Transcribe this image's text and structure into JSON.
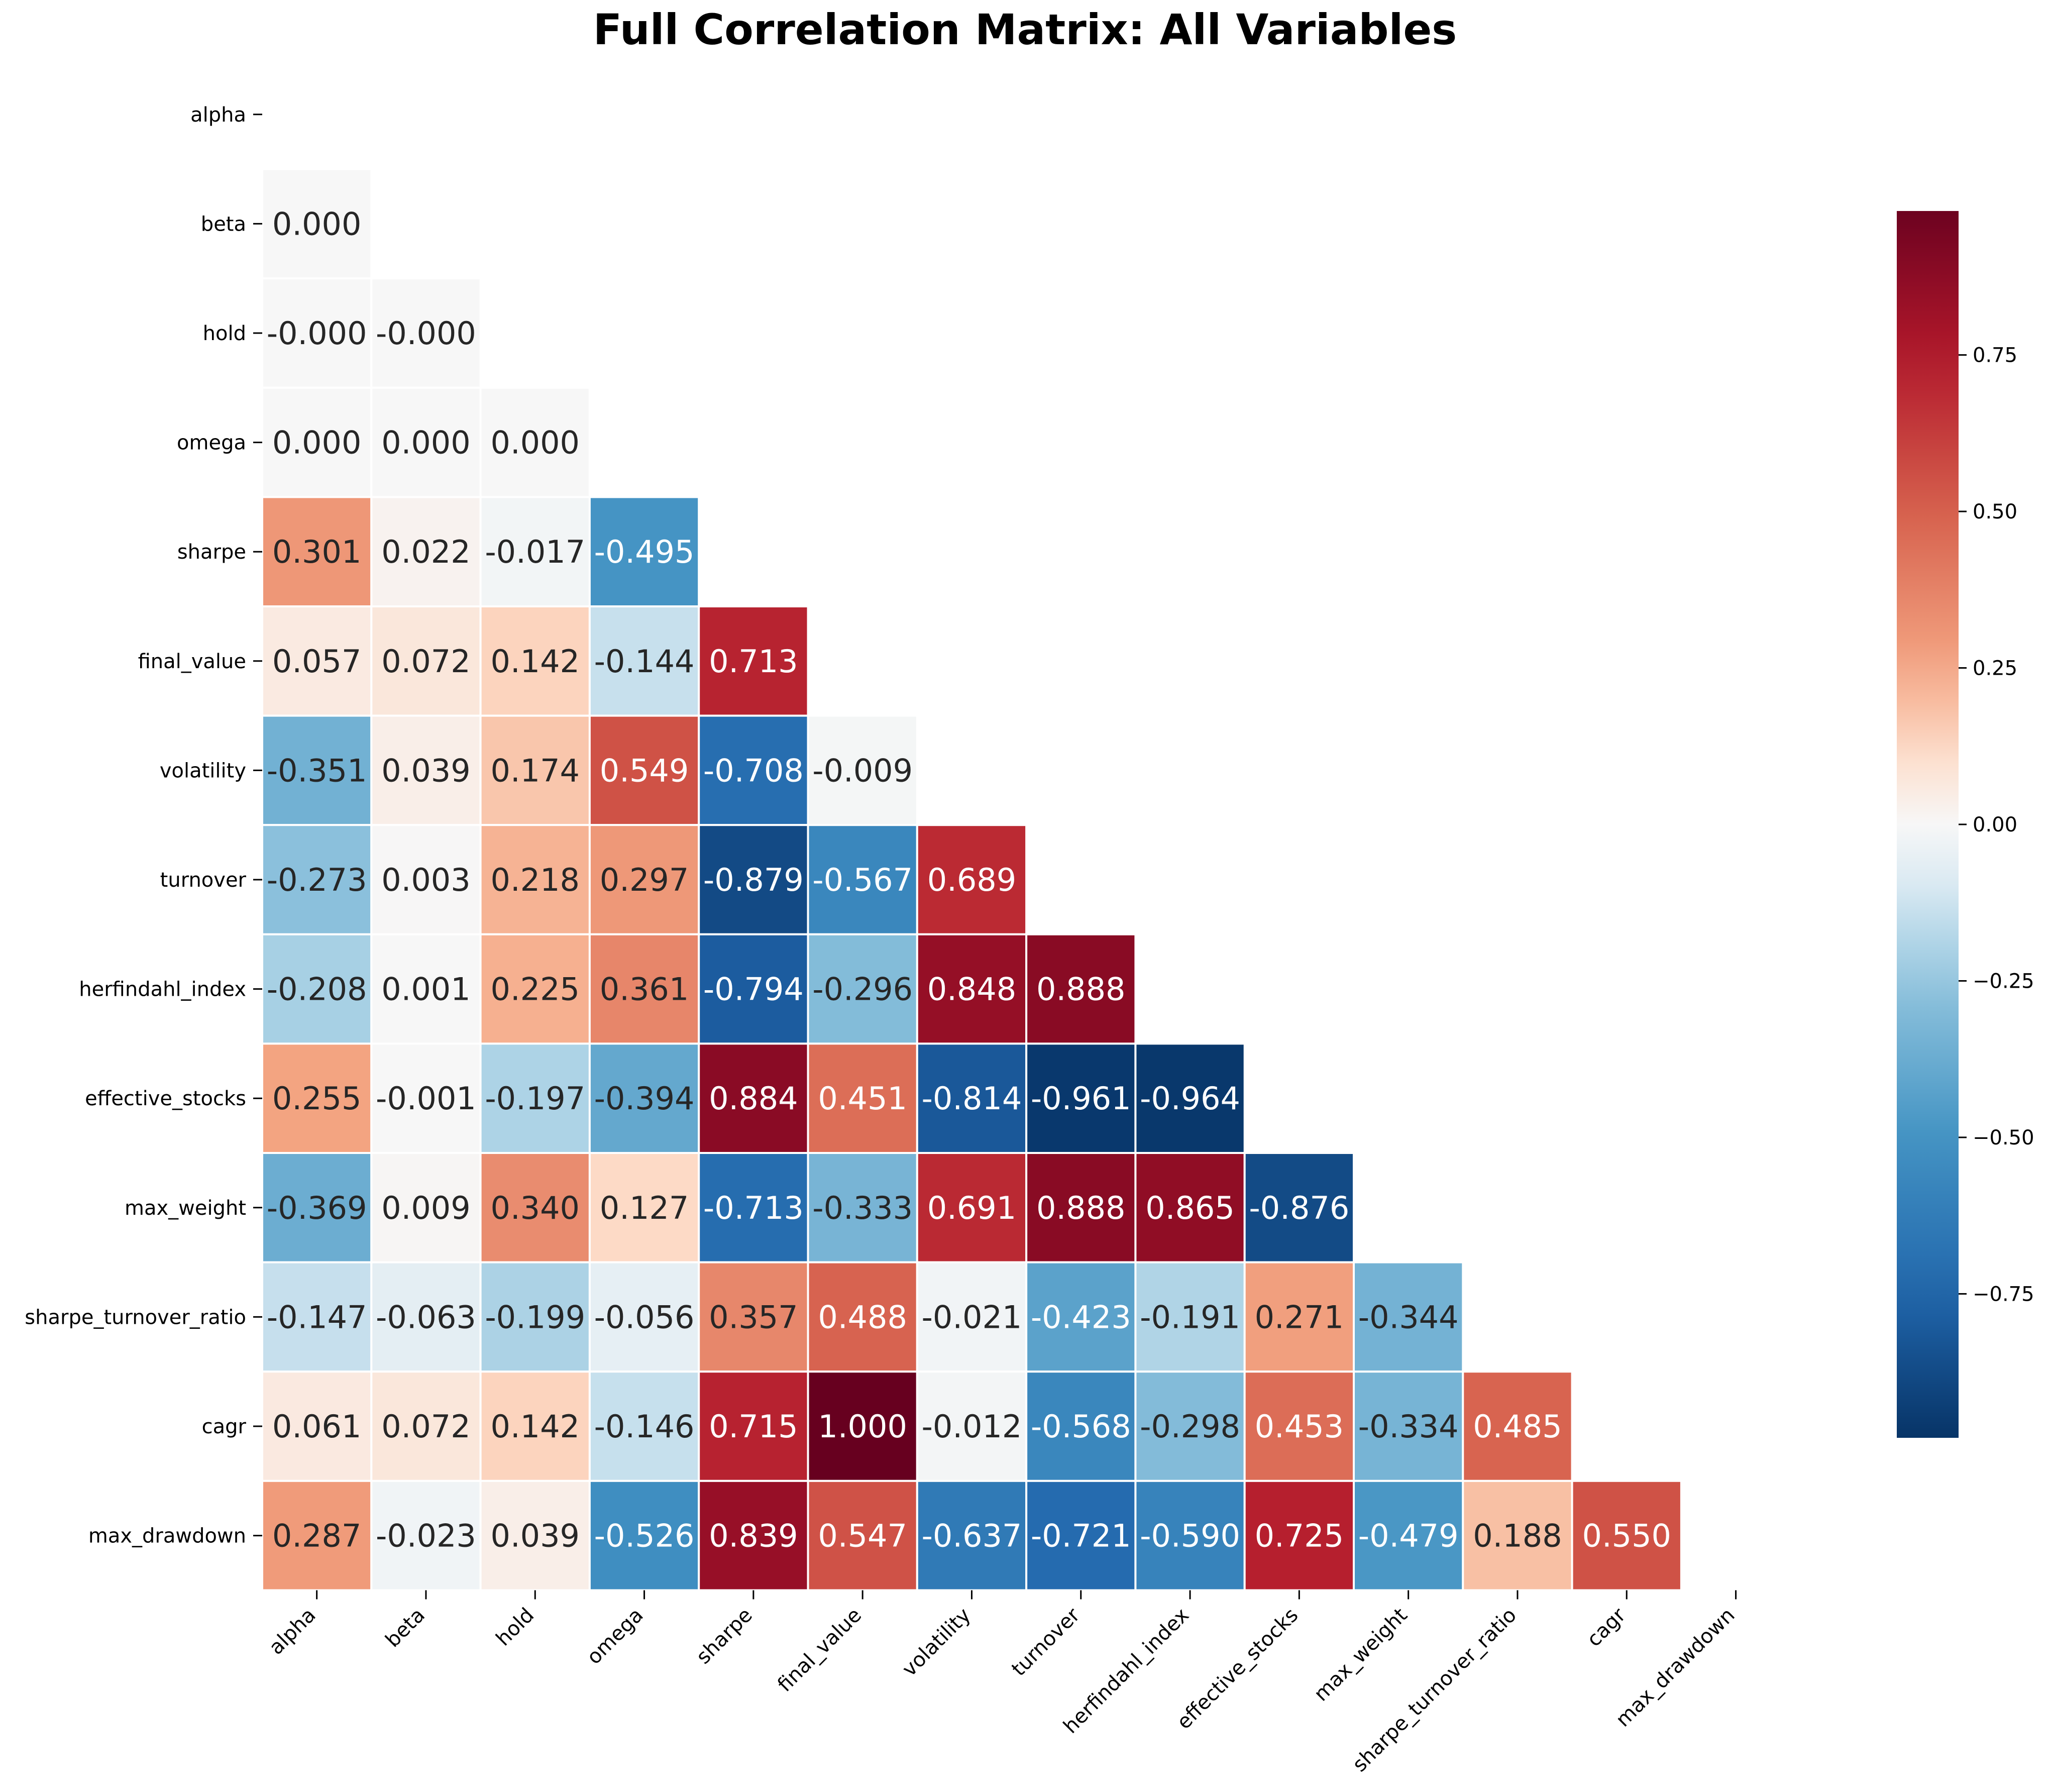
{
  "chart_data": {
    "type": "heatmap",
    "title": "Full Correlation Matrix: All Variables",
    "xlabel": "",
    "ylabel": "",
    "variables": [
      "alpha",
      "beta",
      "hold",
      "omega",
      "sharpe",
      "final_value",
      "volatility",
      "turnover",
      "herfindahl_index",
      "effective_stocks",
      "max_weight",
      "sharpe_turnover_ratio",
      "cagr",
      "max_drawdown"
    ],
    "mask": "upper triangle incl. diagonal (only cells below the diagonal are drawn)",
    "values": [
      [],
      [
        "0.000"
      ],
      [
        "-0.000",
        "-0.000"
      ],
      [
        "0.000",
        "0.000",
        "0.000"
      ],
      [
        "0.301",
        "0.022",
        "-0.017",
        "-0.495"
      ],
      [
        "0.057",
        "0.072",
        "0.142",
        "-0.144",
        "0.713"
      ],
      [
        "-0.351",
        "0.039",
        "0.174",
        "0.549",
        "-0.708",
        "-0.009"
      ],
      [
        "-0.273",
        "0.003",
        "0.218",
        "0.297",
        "-0.879",
        "-0.567",
        "0.689"
      ],
      [
        "-0.208",
        "0.001",
        "0.225",
        "0.361",
        "-0.794",
        "-0.296",
        "0.848",
        "0.888"
      ],
      [
        "0.255",
        "-0.001",
        "-0.197",
        "-0.394",
        "0.884",
        "0.451",
        "-0.814",
        "-0.961",
        "-0.964"
      ],
      [
        "-0.369",
        "0.009",
        "0.340",
        "0.127",
        "-0.713",
        "-0.333",
        "0.691",
        "0.888",
        "0.865",
        "-0.876"
      ],
      [
        "-0.147",
        "-0.063",
        "-0.199",
        "-0.056",
        "0.357",
        "0.488",
        "-0.021",
        "-0.423",
        "-0.191",
        "0.271",
        "-0.344"
      ],
      [
        "0.061",
        "0.072",
        "0.142",
        "-0.146",
        "0.715",
        "1.000",
        "-0.012",
        "-0.568",
        "-0.298",
        "0.453",
        "-0.334",
        "0.485"
      ],
      [
        "0.287",
        "-0.023",
        "0.039",
        "-0.526",
        "0.839",
        "0.547",
        "-0.637",
        "-0.721",
        "-0.590",
        "0.725",
        "-0.479",
        "0.188",
        "0.550"
      ]
    ],
    "colormap": "RdBu_r",
    "color_range": [
      -1,
      1
    ],
    "colorbar": {
      "ticks": [
        "0.75",
        "0.50",
        "0.25",
        "0.00",
        "−0.25",
        "−0.50",
        "−0.75"
      ],
      "tick_values": [
        0.75,
        0.5,
        0.25,
        0.0,
        -0.25,
        -0.5,
        -0.75
      ],
      "range": [
        -0.98,
        0.98
      ]
    },
    "grid": false,
    "legend": "colorbar right"
  }
}
